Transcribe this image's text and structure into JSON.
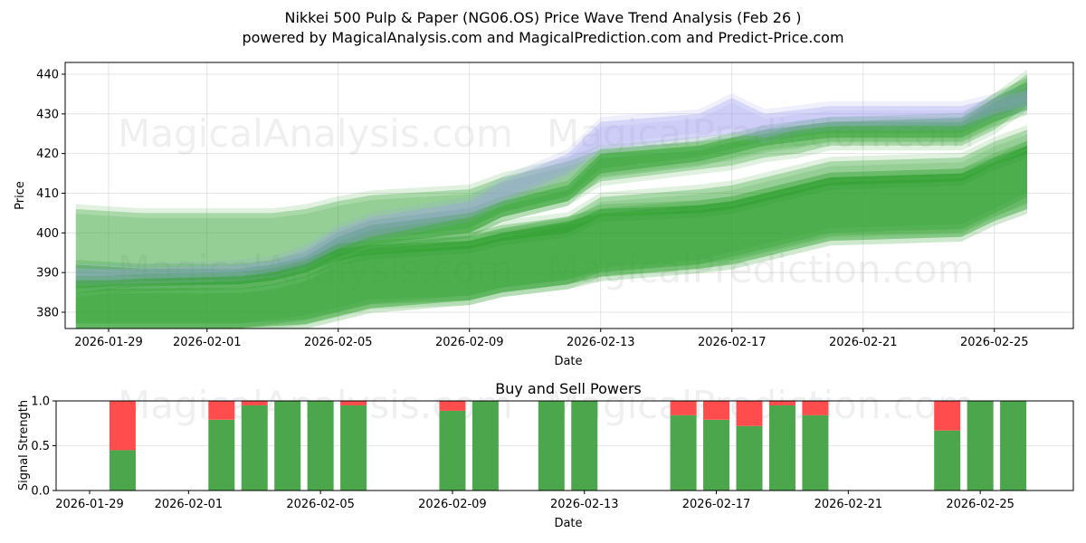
{
  "header": {
    "title": "Nikkei 500 Pulp & Paper (NG06.OS) Price Wave Trend Analysis (Feb 26 )",
    "subtitle": "powered by MagicalAnalysis.com and MagicalPrediction.com and Predict-Price.com"
  },
  "watermarks": [
    "MagicalAnalysis.com",
    "MagicalPrediction.com"
  ],
  "colors": {
    "band_green": "#2ca02c",
    "band_blue": "#9b9bef",
    "buy": "#4ca64c",
    "sell": "#ff4c4c",
    "grid": "#dddddd"
  },
  "chart_data": [
    {
      "type": "area",
      "title": "",
      "xlabel": "Date",
      "ylabel": "Price",
      "ylim": [
        376,
        443
      ],
      "yticks": [
        380,
        390,
        400,
        410,
        420,
        430,
        440
      ],
      "xticks": [
        "2026-01-29",
        "2026-02-01",
        "2026-02-05",
        "2026-02-09",
        "2026-02-13",
        "2026-02-17",
        "2026-02-21",
        "2026-02-25"
      ],
      "grid": true,
      "x": [
        "2026-01-28",
        "2026-01-29",
        "2026-01-30",
        "2026-02-02",
        "2026-02-03",
        "2026-02-04",
        "2026-02-05",
        "2026-02-06",
        "2026-02-09",
        "2026-02-10",
        "2026-02-12",
        "2026-02-13",
        "2026-02-16",
        "2026-02-17",
        "2026-02-18",
        "2026-02-19",
        "2026-02-20",
        "2026-02-24",
        "2026-02-25",
        "2026-02-26"
      ],
      "series": [
        {
          "name": "upper-outer-band",
          "color": "#2ca02c",
          "opacity": 0.3,
          "upper": [
            406,
            405.5,
            405,
            405,
            405,
            406,
            408,
            409.5,
            411,
            414,
            418,
            421,
            423,
            424,
            425,
            427,
            428,
            428,
            434,
            440
          ],
          "lower": [
            391,
            390.5,
            390,
            390,
            390,
            392,
            395,
            398,
            400,
            404,
            408,
            413,
            416,
            417,
            419,
            420,
            422,
            422,
            426,
            432
          ]
        },
        {
          "name": "core-band-upper",
          "color": "#2ca02c",
          "opacity": 0.45,
          "upper": [
            392,
            391.5,
            391,
            391,
            392,
            394,
            399,
            402,
            405,
            408,
            412,
            420,
            422,
            424,
            426,
            427,
            428,
            429,
            434,
            438
          ],
          "lower": [
            386,
            386.5,
            387,
            387,
            388,
            390,
            394,
            397,
            400,
            404,
            408,
            415,
            418,
            420,
            422,
            423,
            424,
            424,
            428,
            431
          ]
        },
        {
          "name": "forecast-blue-band",
          "color": "#9b9bef",
          "opacity": 0.3,
          "upper": [
            391,
            391,
            391,
            392,
            393,
            396,
            401,
            404,
            408,
            413,
            420,
            428,
            430,
            434,
            430,
            431,
            432,
            432,
            434,
            436
          ],
          "lower": [
            387,
            387,
            387,
            388,
            389,
            391,
            396,
            399,
            404,
            408,
            415,
            421,
            424,
            425,
            424,
            426,
            427,
            427,
            430,
            432
          ]
        },
        {
          "name": "mid-band",
          "color": "#2ca02c",
          "opacity": 0.45,
          "upper": [
            388,
            388,
            388.5,
            389,
            390,
            392,
            396,
            397,
            398,
            400,
            402.5,
            406,
            407,
            408,
            410,
            412,
            414,
            415,
            419,
            422
          ],
          "lower": [
            386,
            386,
            386.5,
            387,
            388,
            390,
            393,
            394.5,
            396,
            398,
            400,
            404,
            405,
            406,
            408,
            410,
            412,
            413,
            417,
            420
          ]
        },
        {
          "name": "lower-middle-band",
          "color": "#2ca02c",
          "opacity": 0.3,
          "upper": [
            385,
            386,
            387,
            388,
            389,
            391,
            395,
            398,
            400,
            402,
            404,
            409,
            411,
            412,
            414,
            416,
            418,
            419,
            423,
            426
          ],
          "lower": [
            376,
            376,
            376,
            376,
            377,
            378,
            380,
            382,
            383,
            385,
            387,
            390,
            392,
            394,
            396,
            398,
            400,
            401,
            405,
            409
          ]
        },
        {
          "name": "lower-outer-band",
          "color": "#2ca02c",
          "opacity": 0.45,
          "upper": [
            386,
            386,
            386,
            386,
            387,
            389,
            393,
            396,
            398,
            400,
            403,
            405,
            407,
            408,
            410,
            412,
            414,
            415,
            418,
            422
          ],
          "lower": [
            376,
            376,
            376,
            376,
            376.5,
            377,
            379,
            381,
            383,
            385,
            387,
            389,
            391,
            392,
            394,
            396,
            398,
            399,
            403,
            406
          ]
        }
      ]
    },
    {
      "type": "bar",
      "title": "Buy and Sell Powers",
      "xlabel": "Date",
      "ylabel": "Signal Strength",
      "ylim": [
        0,
        1
      ],
      "yticks": [
        "0.0",
        "0.5",
        "1.0"
      ],
      "xticks": [
        "2026-01-29",
        "2026-02-01",
        "2026-02-05",
        "2026-02-09",
        "2026-02-13",
        "2026-02-17",
        "2026-02-21",
        "2026-02-25"
      ],
      "grid": true,
      "categories": [
        "2026-01-30",
        "2026-02-02",
        "2026-02-03",
        "2026-02-04",
        "2026-02-05",
        "2026-02-06",
        "2026-02-09",
        "2026-02-10",
        "2026-02-12",
        "2026-02-13",
        "2026-02-16",
        "2026-02-17",
        "2026-02-18",
        "2026-02-19",
        "2026-02-20",
        "2026-02-24",
        "2026-02-25",
        "2026-02-26"
      ],
      "series": [
        {
          "name": "Buy",
          "color": "#4ca64c",
          "values": [
            0.45,
            0.79,
            0.95,
            1.0,
            1.0,
            0.95,
            0.89,
            1.0,
            1.0,
            1.0,
            0.84,
            0.79,
            0.72,
            0.95,
            0.84,
            0.67,
            1.0,
            1.0
          ]
        },
        {
          "name": "Sell",
          "color": "#ff4c4c",
          "values": [
            0.55,
            0.21,
            0.05,
            0.0,
            0.0,
            0.05,
            0.11,
            0.0,
            0.0,
            0.0,
            0.16,
            0.21,
            0.28,
            0.05,
            0.16,
            0.33,
            0.0,
            0.0
          ]
        }
      ]
    }
  ]
}
